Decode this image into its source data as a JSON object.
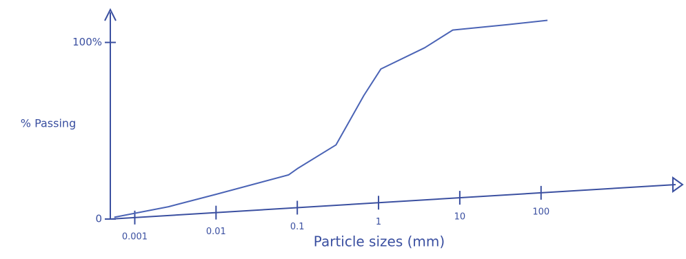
{
  "chart_data": {
    "type": "line",
    "x_label": "Particle sizes (mm)",
    "y_label": "% Passing",
    "x": [
      0.00056,
      0.0026,
      0.01,
      0.078,
      0.1,
      0.3,
      0.66,
      1.07,
      3.7,
      8.2,
      38,
      120
    ],
    "series": [
      {
        "color": "#4a63b5",
        "values": [
          1,
          7,
          14,
          25,
          28.5,
          42,
          70,
          85,
          97,
          107,
          110,
          112.5
        ]
      }
    ],
    "xlim": [
      0.0005,
      5000
    ],
    "xscale": "log",
    "xticks": [
      0.001,
      0.01,
      0.1,
      1,
      10,
      100
    ],
    "ylim": [
      0,
      117
    ],
    "yticks": [
      0,
      {
        "value": 100,
        "label": "100%"
      }
    ]
  }
}
